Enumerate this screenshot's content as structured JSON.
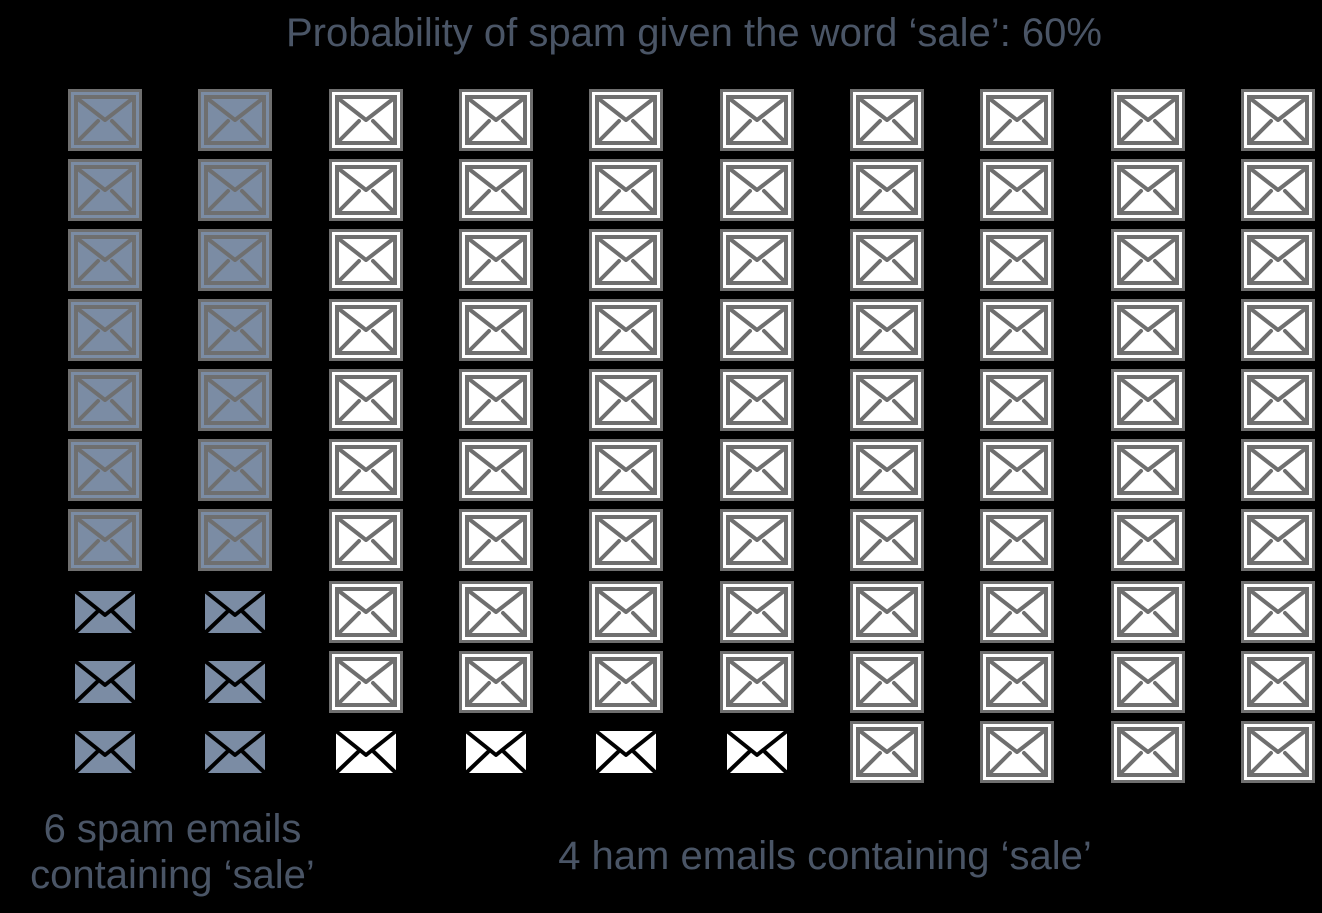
{
  "title": "Probability of spam given the word ‘sale’: 60%",
  "grid": {
    "rows": 10,
    "columns": 10,
    "columns_data": [
      [
        "spam",
        "spam",
        "spam",
        "spam",
        "spam",
        "spam",
        "spam",
        "spam-sale",
        "spam-sale",
        "spam-sale"
      ],
      [
        "spam",
        "spam",
        "spam",
        "spam",
        "spam",
        "spam",
        "spam",
        "spam-sale",
        "spam-sale",
        "spam-sale"
      ],
      [
        "ham",
        "ham",
        "ham",
        "ham",
        "ham",
        "ham",
        "ham",
        "ham",
        "ham",
        "ham-sale"
      ],
      [
        "ham",
        "ham",
        "ham",
        "ham",
        "ham",
        "ham",
        "ham",
        "ham",
        "ham",
        "ham-sale"
      ],
      [
        "ham",
        "ham",
        "ham",
        "ham",
        "ham",
        "ham",
        "ham",
        "ham",
        "ham",
        "ham-sale"
      ],
      [
        "ham",
        "ham",
        "ham",
        "ham",
        "ham",
        "ham",
        "ham",
        "ham",
        "ham",
        "ham-sale"
      ],
      [
        "ham",
        "ham",
        "ham",
        "ham",
        "ham",
        "ham",
        "ham",
        "ham",
        "ham",
        "ham"
      ],
      [
        "ham",
        "ham",
        "ham",
        "ham",
        "ham",
        "ham",
        "ham",
        "ham",
        "ham",
        "ham"
      ],
      [
        "ham",
        "ham",
        "ham",
        "ham",
        "ham",
        "ham",
        "ham",
        "ham",
        "ham",
        "ham"
      ],
      [
        "ham",
        "ham",
        "ham",
        "ham",
        "ham",
        "ham",
        "ham",
        "ham",
        "ham",
        "ham"
      ]
    ]
  },
  "colors": {
    "background": "#000000",
    "text": "#4a5566",
    "spam_fill": "#7b8ca4",
    "ham_fill": "#ffffff",
    "box_stroke": "#6f6f6f",
    "sale_stroke": "#000000"
  },
  "icons": {
    "envelope": "envelope-icon"
  },
  "captions": {
    "spam": "6 spam emails\ncontaining ‘sale’",
    "ham": "4 ham emails containing ‘sale’"
  }
}
